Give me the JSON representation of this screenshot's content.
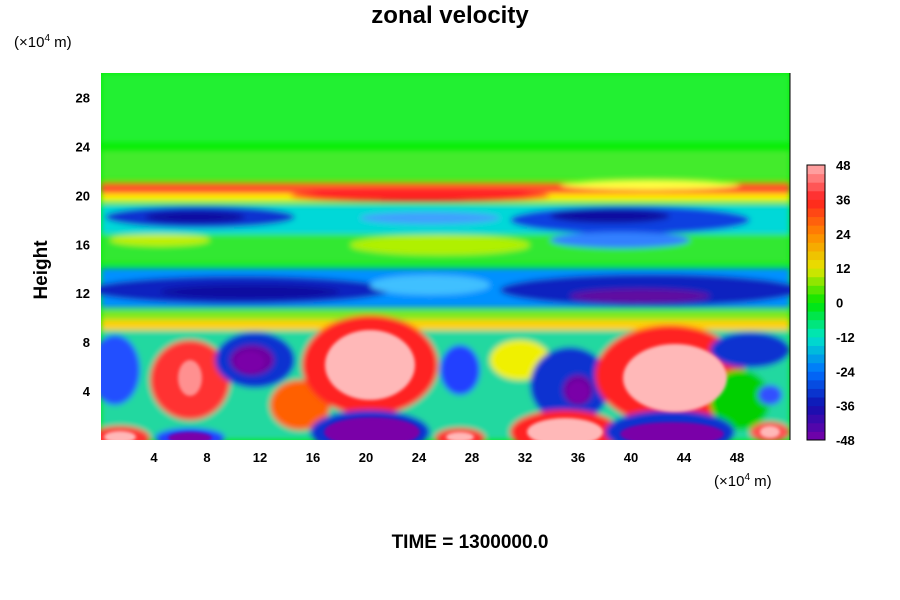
{
  "chart_data": {
    "type": "heatmap",
    "title": "zonal velocity",
    "xlabel": "",
    "ylabel": "Height",
    "x_unit": "(×10⁴ m)",
    "y_unit": "(×10⁴ m)",
    "xlim": [
      0,
      52
    ],
    "ylim": [
      0,
      30
    ],
    "x_ticks": [
      4,
      8,
      12,
      16,
      20,
      24,
      28,
      32,
      36,
      40,
      44,
      48
    ],
    "y_ticks": [
      4,
      8,
      12,
      16,
      20,
      24,
      28
    ],
    "colorbar": {
      "range": [
        -48,
        48
      ],
      "ticks": [
        48,
        36,
        24,
        12,
        0,
        -12,
        -24,
        -36,
        -48
      ],
      "colors_high_to_low": [
        "#ffb0b0",
        "#ff2020",
        "#ff8800",
        "#e6e600",
        "#00e600",
        "#00e6c8",
        "#0070ff",
        "#1010b0",
        "#7a00a8"
      ]
    },
    "features": [
      {
        "x": 20,
        "y": 6.5,
        "value": 48
      },
      {
        "x": 43,
        "y": 5.5,
        "value": 48
      },
      {
        "x": 35.5,
        "y": 1,
        "value": 48
      },
      {
        "x": 20,
        "y": 1,
        "value": -48
      },
      {
        "x": 42,
        "y": 0.8,
        "value": -48
      },
      {
        "x": 11,
        "y": 7,
        "value": -40
      },
      {
        "x": 35,
        "y": 4.5,
        "value": -40
      },
      {
        "x": 14,
        "y": 12,
        "value": -36
      },
      {
        "x": 38,
        "y": 12,
        "value": -40
      },
      {
        "x": 12,
        "y": 18,
        "value": -32
      },
      {
        "x": 40,
        "y": 18,
        "value": -32
      },
      {
        "x": 25,
        "y": 19.8,
        "value": 30
      },
      {
        "x": 30,
        "y": 21,
        "value": 12
      }
    ]
  },
  "footer": {
    "time_label": "TIME = 1300000.0"
  }
}
